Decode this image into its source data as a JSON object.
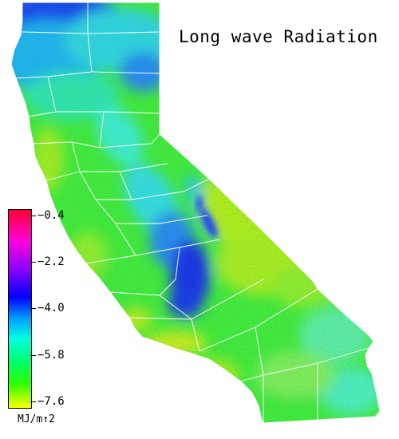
{
  "map": {
    "title": "Long wave Radiation",
    "region": "California",
    "colors": {
      "blue_max": "#1a3cf0",
      "cyan": "#20e8e0",
      "green": "#2ef02e",
      "yellow_green": "#c8f020",
      "boundaries": "#ffffff"
    }
  },
  "legend": {
    "unit": "MJ/m↑2",
    "labels": [
      "−0.4",
      "−2.2",
      "−4.0",
      "−5.8",
      "−7.6"
    ],
    "ramp": [
      "#ff0033",
      "#ff00dd",
      "#7a00ff",
      "#0000ff",
      "#00a0ff",
      "#00ffe0",
      "#00ff60",
      "#30ff00",
      "#c0ff00",
      "#ffff00"
    ]
  }
}
